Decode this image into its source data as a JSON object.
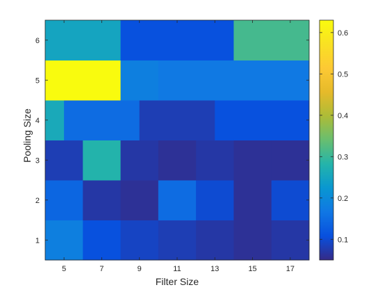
{
  "chart_data": {
    "type": "heatmap",
    "title": "",
    "xlabel": "Filter Size",
    "ylabel": "Pooling Size",
    "x": [
      "5",
      "7",
      "9",
      "11",
      "13",
      "15",
      "17"
    ],
    "y": [
      "1",
      "2",
      "3",
      "4",
      "5",
      "6"
    ],
    "x_centers": [
      5,
      7,
      9,
      11,
      13,
      15,
      17
    ],
    "y_centers": [
      1,
      2,
      3,
      4,
      5,
      6
    ],
    "cell_edges": [
      {
        "y": 1,
        "segments": [
          [
            4,
            6,
            0.18
          ],
          [
            6,
            8,
            0.11
          ],
          [
            8,
            10,
            0.09
          ],
          [
            10,
            12,
            0.08
          ],
          [
            12,
            14,
            0.07
          ],
          [
            14,
            16,
            0.06
          ],
          [
            16,
            18,
            0.07
          ]
        ]
      },
      {
        "y": 2,
        "segments": [
          [
            4,
            6,
            0.14
          ],
          [
            6,
            8,
            0.07
          ],
          [
            8,
            10,
            0.06
          ],
          [
            10,
            12,
            0.15
          ],
          [
            12,
            14,
            0.1
          ],
          [
            14,
            16,
            0.06
          ],
          [
            16,
            18,
            0.1
          ]
        ]
      },
      {
        "y": 3,
        "segments": [
          [
            4,
            6,
            0.08
          ],
          [
            6,
            8,
            0.28
          ],
          [
            8,
            10,
            0.07
          ],
          [
            10,
            12,
            0.06
          ],
          [
            12,
            14,
            0.07
          ],
          [
            14,
            16,
            0.06
          ],
          [
            16,
            18,
            0.06
          ]
        ]
      },
      {
        "y": 4,
        "segments": [
          [
            4,
            5,
            0.26
          ],
          [
            5,
            9,
            0.15
          ],
          [
            9,
            13,
            0.08
          ],
          [
            13,
            18,
            0.11
          ]
        ]
      },
      {
        "y": 5,
        "segments": [
          [
            4,
            8,
            0.63
          ],
          [
            8,
            10,
            0.18
          ],
          [
            10,
            18,
            0.17
          ]
        ]
      },
      {
        "y": 6,
        "segments": [
          [
            4,
            8,
            0.25
          ],
          [
            8,
            14,
            0.11
          ],
          [
            14,
            18,
            0.31
          ]
        ]
      }
    ],
    "xlim": [
      4,
      18
    ],
    "ylim": [
      0.5,
      6.5
    ],
    "colorbar": {
      "ticks": [
        0.1,
        0.2,
        0.3,
        0.4,
        0.5,
        0.6
      ],
      "range": [
        0.05,
        0.63
      ],
      "colormap": "parula"
    }
  }
}
